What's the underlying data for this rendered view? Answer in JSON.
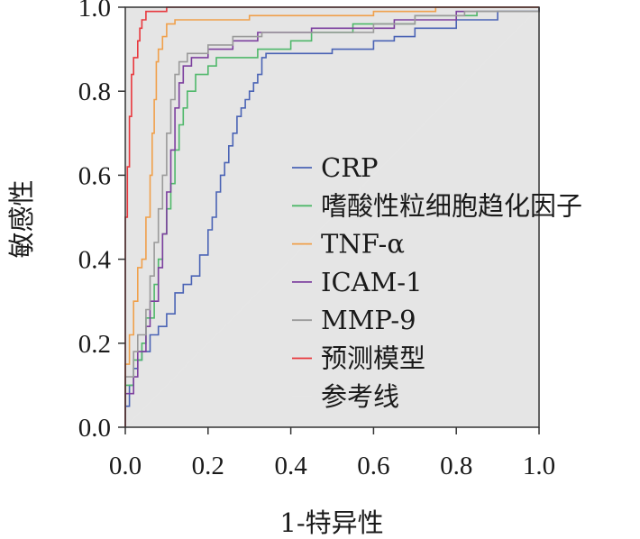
{
  "chart_data": {
    "type": "line",
    "title": "",
    "xlabel": "1-特异性",
    "ylabel": "敏感性",
    "xlim": [
      0,
      1
    ],
    "ylim": [
      0,
      1
    ],
    "xticks": [
      "0.0",
      "0.2",
      "0.4",
      "0.6",
      "0.8",
      "1.0"
    ],
    "yticks": [
      "0.0",
      "0.2",
      "0.4",
      "0.6",
      "0.8",
      "1.0"
    ],
    "grid": false,
    "legend_position": "center-right",
    "series": [
      {
        "name": "CRP",
        "color": "#4a63b5",
        "points": [
          [
            0,
            0
          ],
          [
            0,
            0.05
          ],
          [
            0.01,
            0.05
          ],
          [
            0.01,
            0.1
          ],
          [
            0.02,
            0.1
          ],
          [
            0.02,
            0.14
          ],
          [
            0.03,
            0.14
          ],
          [
            0.03,
            0.16
          ],
          [
            0.04,
            0.16
          ],
          [
            0.04,
            0.18
          ],
          [
            0.06,
            0.18
          ],
          [
            0.06,
            0.22
          ],
          [
            0.08,
            0.22
          ],
          [
            0.08,
            0.24
          ],
          [
            0.1,
            0.24
          ],
          [
            0.1,
            0.27
          ],
          [
            0.12,
            0.27
          ],
          [
            0.12,
            0.32
          ],
          [
            0.14,
            0.32
          ],
          [
            0.14,
            0.34
          ],
          [
            0.16,
            0.34
          ],
          [
            0.16,
            0.36
          ],
          [
            0.18,
            0.36
          ],
          [
            0.18,
            0.41
          ],
          [
            0.2,
            0.41
          ],
          [
            0.2,
            0.47
          ],
          [
            0.21,
            0.47
          ],
          [
            0.21,
            0.5
          ],
          [
            0.22,
            0.5
          ],
          [
            0.22,
            0.56
          ],
          [
            0.23,
            0.56
          ],
          [
            0.23,
            0.6
          ],
          [
            0.24,
            0.6
          ],
          [
            0.24,
            0.63
          ],
          [
            0.25,
            0.63
          ],
          [
            0.25,
            0.67
          ],
          [
            0.26,
            0.67
          ],
          [
            0.26,
            0.7
          ],
          [
            0.27,
            0.7
          ],
          [
            0.27,
            0.74
          ],
          [
            0.28,
            0.74
          ],
          [
            0.28,
            0.76
          ],
          [
            0.29,
            0.76
          ],
          [
            0.29,
            0.78
          ],
          [
            0.3,
            0.78
          ],
          [
            0.3,
            0.8
          ],
          [
            0.31,
            0.8
          ],
          [
            0.31,
            0.82
          ],
          [
            0.32,
            0.82
          ],
          [
            0.32,
            0.84
          ],
          [
            0.33,
            0.84
          ],
          [
            0.33,
            0.88
          ],
          [
            0.34,
            0.88
          ],
          [
            0.34,
            0.89
          ],
          [
            0.5,
            0.89
          ],
          [
            0.5,
            0.9
          ],
          [
            0.6,
            0.9
          ],
          [
            0.6,
            0.92
          ],
          [
            0.65,
            0.92
          ],
          [
            0.65,
            0.93
          ],
          [
            0.7,
            0.93
          ],
          [
            0.7,
            0.95
          ],
          [
            0.8,
            0.95
          ],
          [
            0.8,
            0.97
          ],
          [
            0.9,
            0.97
          ],
          [
            0.9,
            0.99
          ],
          [
            1,
            0.99
          ],
          [
            1,
            1
          ]
        ]
      },
      {
        "name": "嗜酸性粒细胞趋化因子",
        "color": "#4fb86a",
        "points": [
          [
            0,
            0
          ],
          [
            0,
            0.1
          ],
          [
            0.02,
            0.1
          ],
          [
            0.02,
            0.16
          ],
          [
            0.04,
            0.16
          ],
          [
            0.04,
            0.2
          ],
          [
            0.05,
            0.2
          ],
          [
            0.05,
            0.26
          ],
          [
            0.07,
            0.26
          ],
          [
            0.07,
            0.34
          ],
          [
            0.08,
            0.34
          ],
          [
            0.08,
            0.4
          ],
          [
            0.09,
            0.4
          ],
          [
            0.09,
            0.46
          ],
          [
            0.1,
            0.46
          ],
          [
            0.1,
            0.52
          ],
          [
            0.11,
            0.52
          ],
          [
            0.11,
            0.58
          ],
          [
            0.12,
            0.58
          ],
          [
            0.12,
            0.66
          ],
          [
            0.13,
            0.66
          ],
          [
            0.13,
            0.72
          ],
          [
            0.14,
            0.72
          ],
          [
            0.14,
            0.76
          ],
          [
            0.15,
            0.76
          ],
          [
            0.15,
            0.8
          ],
          [
            0.17,
            0.8
          ],
          [
            0.17,
            0.84
          ],
          [
            0.2,
            0.84
          ],
          [
            0.2,
            0.86
          ],
          [
            0.22,
            0.86
          ],
          [
            0.22,
            0.88
          ],
          [
            0.32,
            0.88
          ],
          [
            0.32,
            0.9
          ],
          [
            0.4,
            0.9
          ],
          [
            0.4,
            0.92
          ],
          [
            0.45,
            0.92
          ],
          [
            0.45,
            0.94
          ],
          [
            0.55,
            0.94
          ],
          [
            0.55,
            0.96
          ],
          [
            0.7,
            0.96
          ],
          [
            0.7,
            0.98
          ],
          [
            0.85,
            0.98
          ],
          [
            0.85,
            0.99
          ],
          [
            1,
            0.99
          ],
          [
            1,
            1
          ]
        ]
      },
      {
        "name": "TNF-α",
        "color": "#f0a04b",
        "points": [
          [
            0,
            0
          ],
          [
            0,
            0.15
          ],
          [
            0.01,
            0.15
          ],
          [
            0.01,
            0.22
          ],
          [
            0.02,
            0.22
          ],
          [
            0.02,
            0.3
          ],
          [
            0.03,
            0.3
          ],
          [
            0.03,
            0.38
          ],
          [
            0.04,
            0.38
          ],
          [
            0.04,
            0.4
          ],
          [
            0.05,
            0.4
          ],
          [
            0.05,
            0.5
          ],
          [
            0.06,
            0.5
          ],
          [
            0.06,
            0.6
          ],
          [
            0.065,
            0.6
          ],
          [
            0.065,
            0.7
          ],
          [
            0.07,
            0.7
          ],
          [
            0.07,
            0.78
          ],
          [
            0.075,
            0.78
          ],
          [
            0.075,
            0.87
          ],
          [
            0.08,
            0.87
          ],
          [
            0.08,
            0.9
          ],
          [
            0.09,
            0.9
          ],
          [
            0.09,
            0.93
          ],
          [
            0.1,
            0.93
          ],
          [
            0.1,
            0.96
          ],
          [
            0.12,
            0.96
          ],
          [
            0.12,
            0.97
          ],
          [
            0.3,
            0.97
          ],
          [
            0.3,
            0.98
          ],
          [
            0.6,
            0.98
          ],
          [
            0.6,
            0.99
          ],
          [
            0.75,
            0.99
          ],
          [
            0.75,
            1
          ],
          [
            1,
            1
          ]
        ]
      },
      {
        "name": "ICAM-1",
        "color": "#7c3f9e",
        "points": [
          [
            0,
            0
          ],
          [
            0,
            0.08
          ],
          [
            0.02,
            0.08
          ],
          [
            0.02,
            0.12
          ],
          [
            0.03,
            0.12
          ],
          [
            0.03,
            0.18
          ],
          [
            0.05,
            0.18
          ],
          [
            0.05,
            0.24
          ],
          [
            0.06,
            0.24
          ],
          [
            0.06,
            0.3
          ],
          [
            0.08,
            0.3
          ],
          [
            0.08,
            0.38
          ],
          [
            0.09,
            0.38
          ],
          [
            0.09,
            0.46
          ],
          [
            0.1,
            0.46
          ],
          [
            0.1,
            0.56
          ],
          [
            0.11,
            0.56
          ],
          [
            0.11,
            0.66
          ],
          [
            0.12,
            0.66
          ],
          [
            0.12,
            0.76
          ],
          [
            0.13,
            0.76
          ],
          [
            0.13,
            0.82
          ],
          [
            0.14,
            0.82
          ],
          [
            0.14,
            0.86
          ],
          [
            0.16,
            0.86
          ],
          [
            0.16,
            0.88
          ],
          [
            0.2,
            0.88
          ],
          [
            0.2,
            0.9
          ],
          [
            0.26,
            0.9
          ],
          [
            0.26,
            0.92
          ],
          [
            0.32,
            0.92
          ],
          [
            0.32,
            0.94
          ],
          [
            0.45,
            0.94
          ],
          [
            0.45,
            0.95
          ],
          [
            0.65,
            0.95
          ],
          [
            0.65,
            0.97
          ],
          [
            0.8,
            0.97
          ],
          [
            0.8,
            0.99
          ],
          [
            1,
            0.99
          ],
          [
            1,
            1
          ]
        ]
      },
      {
        "name": "MMP-9",
        "color": "#9a9a9a",
        "points": [
          [
            0,
            0
          ],
          [
            0,
            0.12
          ],
          [
            0.02,
            0.12
          ],
          [
            0.02,
            0.18
          ],
          [
            0.03,
            0.18
          ],
          [
            0.03,
            0.22
          ],
          [
            0.05,
            0.22
          ],
          [
            0.05,
            0.28
          ],
          [
            0.06,
            0.28
          ],
          [
            0.06,
            0.36
          ],
          [
            0.07,
            0.36
          ],
          [
            0.07,
            0.44
          ],
          [
            0.08,
            0.44
          ],
          [
            0.08,
            0.52
          ],
          [
            0.09,
            0.52
          ],
          [
            0.09,
            0.6
          ],
          [
            0.1,
            0.6
          ],
          [
            0.1,
            0.7
          ],
          [
            0.11,
            0.7
          ],
          [
            0.11,
            0.78
          ],
          [
            0.12,
            0.78
          ],
          [
            0.12,
            0.84
          ],
          [
            0.13,
            0.84
          ],
          [
            0.13,
            0.87
          ],
          [
            0.15,
            0.87
          ],
          [
            0.15,
            0.89
          ],
          [
            0.2,
            0.89
          ],
          [
            0.2,
            0.91
          ],
          [
            0.26,
            0.91
          ],
          [
            0.26,
            0.93
          ],
          [
            0.33,
            0.93
          ],
          [
            0.33,
            0.94
          ],
          [
            0.6,
            0.94
          ],
          [
            0.6,
            0.96
          ],
          [
            0.7,
            0.96
          ],
          [
            0.7,
            0.98
          ],
          [
            0.82,
            0.98
          ],
          [
            0.82,
            0.99
          ],
          [
            1,
            0.99
          ],
          [
            1,
            1
          ]
        ]
      },
      {
        "name": "预测模型",
        "color": "#e8383d",
        "points": [
          [
            0,
            0
          ],
          [
            0,
            0.5
          ],
          [
            0.005,
            0.5
          ],
          [
            0.005,
            0.62
          ],
          [
            0.01,
            0.62
          ],
          [
            0.01,
            0.74
          ],
          [
            0.015,
            0.74
          ],
          [
            0.015,
            0.84
          ],
          [
            0.02,
            0.84
          ],
          [
            0.02,
            0.88
          ],
          [
            0.03,
            0.88
          ],
          [
            0.03,
            0.92
          ],
          [
            0.035,
            0.92
          ],
          [
            0.035,
            0.95
          ],
          [
            0.04,
            0.95
          ],
          [
            0.04,
            0.97
          ],
          [
            0.05,
            0.97
          ],
          [
            0.05,
            0.99
          ],
          [
            0.1,
            0.99
          ],
          [
            0.1,
            1
          ],
          [
            1,
            1
          ]
        ]
      },
      {
        "name": "参考线",
        "color": "#e6e6e6",
        "points": [
          [
            0,
            0
          ],
          [
            1,
            1
          ]
        ]
      }
    ]
  }
}
